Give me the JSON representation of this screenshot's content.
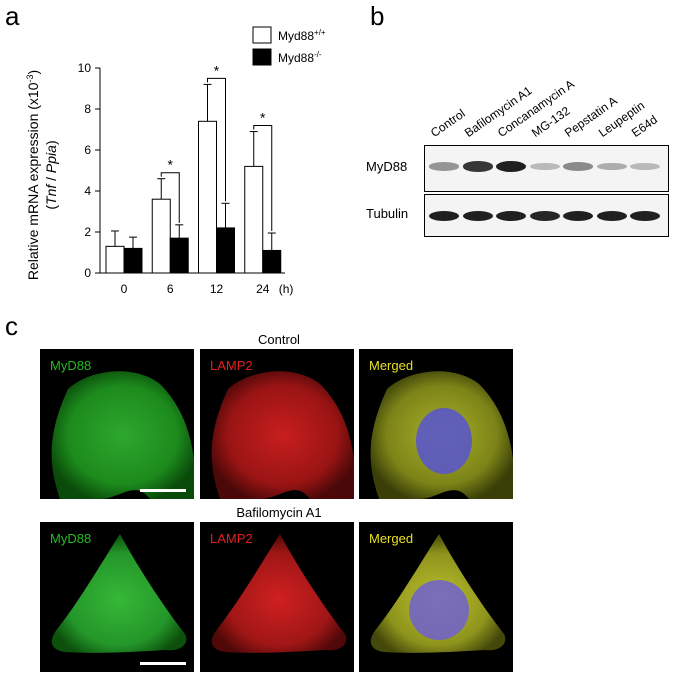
{
  "panels": {
    "a": "a",
    "b": "b",
    "c": "c"
  },
  "chart_data": {
    "type": "bar",
    "categories": [
      "0",
      "6",
      "12",
      "24"
    ],
    "x_unit": "(h)",
    "ylabel_line1": "Relative mRNA expression (x10",
    "ylabel_exp": "-3",
    "ylabel_line1_end": ")",
    "ylabel_line2_open": "(",
    "ylabel_gene1": "Tnf",
    "ylabel_sep": " / ",
    "ylabel_gene2": "Ppia",
    "ylabel_line2_close": ")",
    "ylim": [
      0,
      10
    ],
    "yticks": [
      "0",
      "2",
      "4",
      "6",
      "8",
      "10"
    ],
    "series": [
      {
        "name": "Myd88+/+",
        "name_base": "Myd88",
        "name_sup": "+/+",
        "color": "#ffffff",
        "values": [
          1.3,
          3.6,
          7.4,
          5.2
        ],
        "errors": [
          0.75,
          1.0,
          1.8,
          1.7
        ]
      },
      {
        "name": "Myd88-/-",
        "name_base": "Myd88",
        "name_sup": "-/-",
        "color": "#000000",
        "values": [
          1.2,
          1.7,
          2.2,
          1.1
        ],
        "errors": [
          0.55,
          0.65,
          1.2,
          0.85
        ]
      }
    ],
    "significance": [
      {
        "category": "6",
        "label": "*"
      },
      {
        "category": "12",
        "label": "*"
      },
      {
        "category": "24",
        "label": "*"
      }
    ]
  },
  "blot": {
    "lanes": [
      "Control",
      "Bafilomycin A1",
      "Concanamycin A",
      "MG-132",
      "Pepstatin A",
      "Leupeptin",
      "E64d"
    ],
    "rows": [
      {
        "label": "MyD88",
        "intensities": [
          0.45,
          0.85,
          0.95,
          0.3,
          0.5,
          0.35,
          0.3
        ]
      },
      {
        "label": "Tubulin",
        "intensities": [
          0.95,
          0.95,
          0.95,
          0.92,
          0.95,
          0.95,
          0.95
        ]
      }
    ]
  },
  "microscopy": {
    "conditions": [
      {
        "title": "Control",
        "scale_bar": true,
        "channels": [
          {
            "label": "MyD88",
            "color": "#22bb22"
          },
          {
            "label": "LAMP2",
            "color": "#e02020"
          },
          {
            "label": "Merged",
            "color": "#e6e020"
          }
        ]
      },
      {
        "title": "Bafilomycin  A1",
        "scale_bar": true,
        "channels": [
          {
            "label": "MyD88",
            "color": "#22bb22"
          },
          {
            "label": "LAMP2",
            "color": "#e02020"
          },
          {
            "label": "Merged",
            "color": "#e6e020"
          }
        ]
      }
    ]
  }
}
